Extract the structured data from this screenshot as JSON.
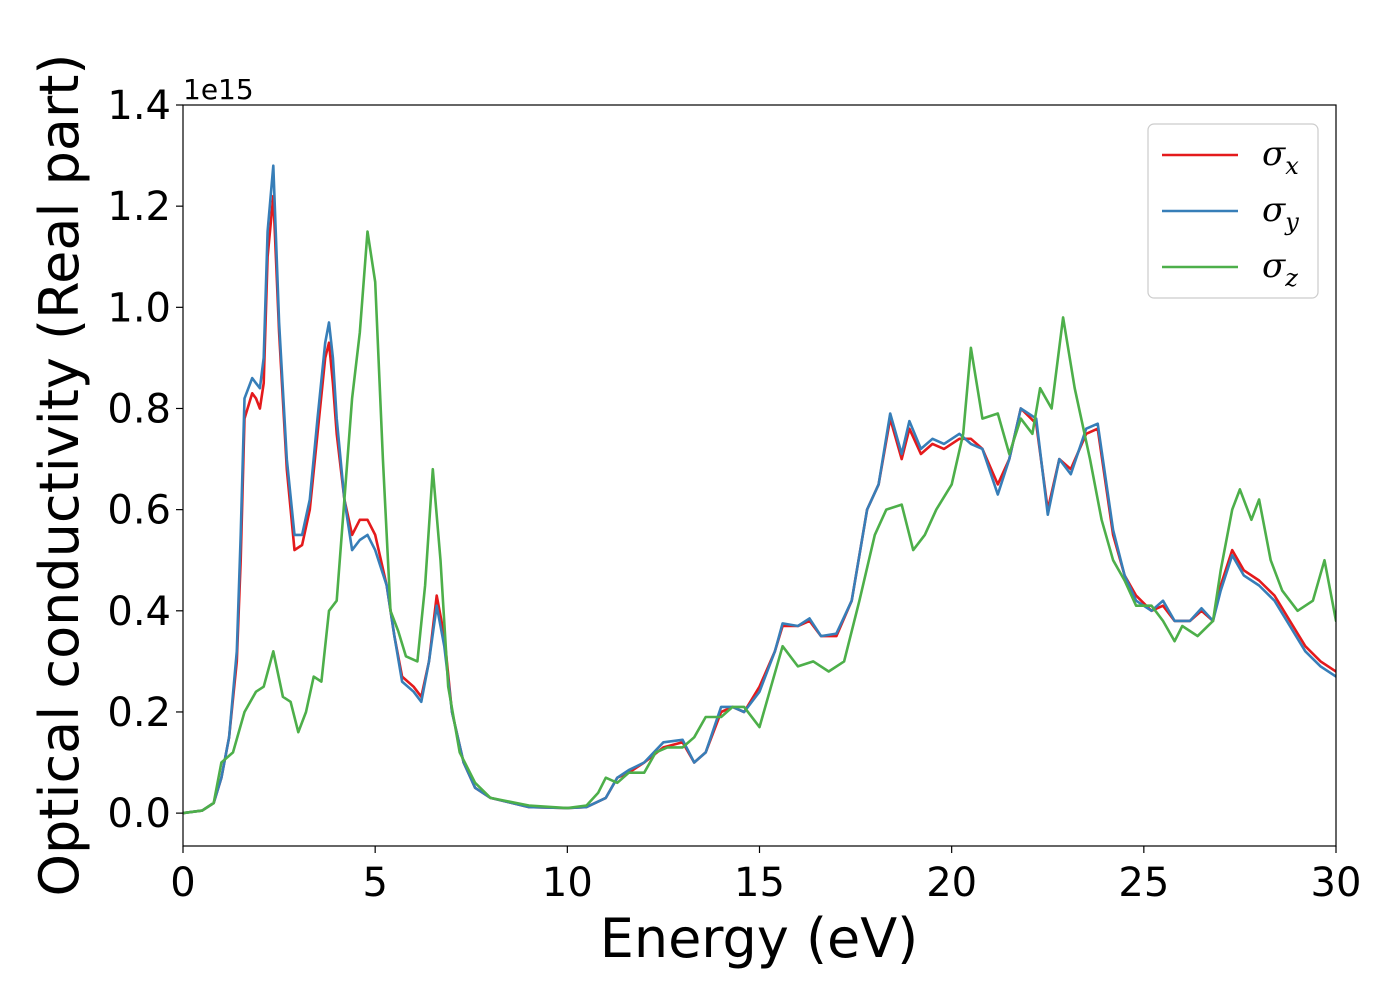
{
  "chart_data": {
    "type": "line",
    "title": "",
    "xlabel": "Energy (eV)",
    "ylabel": "Optical conductivity (Real part)",
    "y_offset_label": "1e15",
    "xlim": [
      0,
      30
    ],
    "ylim": [
      -0.065,
      1.4
    ],
    "xticks": [
      0,
      5,
      10,
      15,
      20,
      25,
      30
    ],
    "xtick_labels": [
      "0",
      "5",
      "10",
      "15",
      "20",
      "25",
      "30"
    ],
    "yticks": [
      0.0,
      0.2,
      0.4,
      0.6,
      0.8,
      1.0,
      1.2,
      1.4
    ],
    "ytick_labels": [
      "0.0",
      "0.2",
      "0.4",
      "0.6",
      "0.8",
      "1.0",
      "1.2",
      "1.4"
    ],
    "grid": false,
    "legend_position": "top-right",
    "series": [
      {
        "name": "σx",
        "label_base": "σ",
        "label_sub": "x",
        "color": "#e41a1c",
        "points": [
          [
            0,
            0
          ],
          [
            0.5,
            0.005
          ],
          [
            0.8,
            0.02
          ],
          [
            1.0,
            0.07
          ],
          [
            1.2,
            0.15
          ],
          [
            1.4,
            0.3
          ],
          [
            1.5,
            0.5
          ],
          [
            1.6,
            0.78
          ],
          [
            1.8,
            0.83
          ],
          [
            1.9,
            0.82
          ],
          [
            2.0,
            0.8
          ],
          [
            2.1,
            0.85
          ],
          [
            2.2,
            1.1
          ],
          [
            2.35,
            1.22
          ],
          [
            2.5,
            0.95
          ],
          [
            2.7,
            0.68
          ],
          [
            2.9,
            0.52
          ],
          [
            3.1,
            0.53
          ],
          [
            3.3,
            0.6
          ],
          [
            3.5,
            0.75
          ],
          [
            3.7,
            0.9
          ],
          [
            3.8,
            0.93
          ],
          [
            3.9,
            0.85
          ],
          [
            4.0,
            0.75
          ],
          [
            4.2,
            0.62
          ],
          [
            4.4,
            0.55
          ],
          [
            4.6,
            0.58
          ],
          [
            4.8,
            0.58
          ],
          [
            5.0,
            0.55
          ],
          [
            5.3,
            0.45
          ],
          [
            5.5,
            0.35
          ],
          [
            5.7,
            0.27
          ],
          [
            6.0,
            0.25
          ],
          [
            6.2,
            0.23
          ],
          [
            6.4,
            0.3
          ],
          [
            6.6,
            0.43
          ],
          [
            6.8,
            0.35
          ],
          [
            7.0,
            0.2
          ],
          [
            7.3,
            0.1
          ],
          [
            7.6,
            0.05
          ],
          [
            8.0,
            0.03
          ],
          [
            9.0,
            0.012
          ],
          [
            10.0,
            0.01
          ],
          [
            10.5,
            0.012
          ],
          [
            11.0,
            0.03
          ],
          [
            11.3,
            0.07
          ],
          [
            11.6,
            0.08
          ],
          [
            12.0,
            0.1
          ],
          [
            12.5,
            0.13
          ],
          [
            13.0,
            0.14
          ],
          [
            13.3,
            0.1
          ],
          [
            13.6,
            0.12
          ],
          [
            14.0,
            0.2
          ],
          [
            14.3,
            0.21
          ],
          [
            14.6,
            0.2
          ],
          [
            15.0,
            0.25
          ],
          [
            15.4,
            0.32
          ],
          [
            15.6,
            0.37
          ],
          [
            16.0,
            0.37
          ],
          [
            16.3,
            0.38
          ],
          [
            16.6,
            0.35
          ],
          [
            17.0,
            0.35
          ],
          [
            17.4,
            0.42
          ],
          [
            17.8,
            0.6
          ],
          [
            18.1,
            0.65
          ],
          [
            18.4,
            0.78
          ],
          [
            18.7,
            0.7
          ],
          [
            18.9,
            0.76
          ],
          [
            19.2,
            0.71
          ],
          [
            19.5,
            0.73
          ],
          [
            19.8,
            0.72
          ],
          [
            20.2,
            0.74
          ],
          [
            20.5,
            0.74
          ],
          [
            20.8,
            0.72
          ],
          [
            21.2,
            0.65
          ],
          [
            21.5,
            0.7
          ],
          [
            21.8,
            0.8
          ],
          [
            22.2,
            0.77
          ],
          [
            22.5,
            0.6
          ],
          [
            22.8,
            0.7
          ],
          [
            23.1,
            0.68
          ],
          [
            23.5,
            0.75
          ],
          [
            23.8,
            0.76
          ],
          [
            24.2,
            0.55
          ],
          [
            24.5,
            0.47
          ],
          [
            24.8,
            0.43
          ],
          [
            25.2,
            0.4
          ],
          [
            25.5,
            0.41
          ],
          [
            25.8,
            0.38
          ],
          [
            26.2,
            0.38
          ],
          [
            26.5,
            0.4
          ],
          [
            26.8,
            0.38
          ],
          [
            27.0,
            0.45
          ],
          [
            27.3,
            0.52
          ],
          [
            27.6,
            0.48
          ],
          [
            28.0,
            0.46
          ],
          [
            28.4,
            0.43
          ],
          [
            28.8,
            0.38
          ],
          [
            29.2,
            0.33
          ],
          [
            29.6,
            0.3
          ],
          [
            30.0,
            0.28
          ]
        ]
      },
      {
        "name": "σy",
        "label_base": "σ",
        "label_sub": "y",
        "color": "#377eb8",
        "points": [
          [
            0,
            0
          ],
          [
            0.5,
            0.005
          ],
          [
            0.8,
            0.02
          ],
          [
            1.0,
            0.07
          ],
          [
            1.2,
            0.15
          ],
          [
            1.4,
            0.32
          ],
          [
            1.5,
            0.55
          ],
          [
            1.6,
            0.82
          ],
          [
            1.8,
            0.86
          ],
          [
            1.9,
            0.85
          ],
          [
            2.0,
            0.84
          ],
          [
            2.1,
            0.9
          ],
          [
            2.2,
            1.15
          ],
          [
            2.35,
            1.28
          ],
          [
            2.5,
            0.97
          ],
          [
            2.7,
            0.7
          ],
          [
            2.9,
            0.55
          ],
          [
            3.1,
            0.55
          ],
          [
            3.3,
            0.62
          ],
          [
            3.5,
            0.78
          ],
          [
            3.7,
            0.93
          ],
          [
            3.8,
            0.97
          ],
          [
            3.9,
            0.9
          ],
          [
            4.0,
            0.78
          ],
          [
            4.2,
            0.62
          ],
          [
            4.4,
            0.52
          ],
          [
            4.6,
            0.54
          ],
          [
            4.8,
            0.55
          ],
          [
            5.0,
            0.52
          ],
          [
            5.3,
            0.45
          ],
          [
            5.5,
            0.35
          ],
          [
            5.7,
            0.26
          ],
          [
            6.0,
            0.24
          ],
          [
            6.2,
            0.22
          ],
          [
            6.4,
            0.3
          ],
          [
            6.6,
            0.41
          ],
          [
            6.8,
            0.33
          ],
          [
            7.0,
            0.2
          ],
          [
            7.3,
            0.1
          ],
          [
            7.6,
            0.05
          ],
          [
            8.0,
            0.03
          ],
          [
            9.0,
            0.012
          ],
          [
            10.0,
            0.01
          ],
          [
            10.5,
            0.012
          ],
          [
            11.0,
            0.03
          ],
          [
            11.3,
            0.07
          ],
          [
            11.6,
            0.085
          ],
          [
            12.0,
            0.1
          ],
          [
            12.5,
            0.14
          ],
          [
            13.0,
            0.145
          ],
          [
            13.3,
            0.1
          ],
          [
            13.6,
            0.12
          ],
          [
            14.0,
            0.21
          ],
          [
            14.3,
            0.21
          ],
          [
            14.6,
            0.2
          ],
          [
            15.0,
            0.24
          ],
          [
            15.4,
            0.32
          ],
          [
            15.6,
            0.375
          ],
          [
            16.0,
            0.37
          ],
          [
            16.3,
            0.385
          ],
          [
            16.6,
            0.35
          ],
          [
            17.0,
            0.355
          ],
          [
            17.4,
            0.42
          ],
          [
            17.8,
            0.6
          ],
          [
            18.1,
            0.65
          ],
          [
            18.4,
            0.79
          ],
          [
            18.7,
            0.71
          ],
          [
            18.9,
            0.775
          ],
          [
            19.2,
            0.72
          ],
          [
            19.5,
            0.74
          ],
          [
            19.8,
            0.73
          ],
          [
            20.2,
            0.75
          ],
          [
            20.5,
            0.73
          ],
          [
            20.8,
            0.72
          ],
          [
            21.2,
            0.63
          ],
          [
            21.5,
            0.7
          ],
          [
            21.8,
            0.8
          ],
          [
            22.2,
            0.78
          ],
          [
            22.5,
            0.59
          ],
          [
            22.8,
            0.7
          ],
          [
            23.1,
            0.67
          ],
          [
            23.5,
            0.76
          ],
          [
            23.8,
            0.77
          ],
          [
            24.2,
            0.56
          ],
          [
            24.5,
            0.47
          ],
          [
            24.8,
            0.42
          ],
          [
            25.2,
            0.4
          ],
          [
            25.5,
            0.42
          ],
          [
            25.8,
            0.38
          ],
          [
            26.2,
            0.38
          ],
          [
            26.5,
            0.405
          ],
          [
            26.8,
            0.38
          ],
          [
            27.0,
            0.44
          ],
          [
            27.3,
            0.51
          ],
          [
            27.6,
            0.47
          ],
          [
            28.0,
            0.45
          ],
          [
            28.4,
            0.42
          ],
          [
            28.8,
            0.37
          ],
          [
            29.2,
            0.32
          ],
          [
            29.6,
            0.29
          ],
          [
            30.0,
            0.27
          ]
        ]
      },
      {
        "name": "σz",
        "label_base": "σ",
        "label_sub": "z",
        "color": "#4daf4a",
        "points": [
          [
            0,
            0
          ],
          [
            0.5,
            0.005
          ],
          [
            0.8,
            0.02
          ],
          [
            1.0,
            0.1
          ],
          [
            1.3,
            0.12
          ],
          [
            1.6,
            0.2
          ],
          [
            1.9,
            0.24
          ],
          [
            2.1,
            0.25
          ],
          [
            2.35,
            0.32
          ],
          [
            2.6,
            0.23
          ],
          [
            2.8,
            0.22
          ],
          [
            3.0,
            0.16
          ],
          [
            3.2,
            0.2
          ],
          [
            3.4,
            0.27
          ],
          [
            3.6,
            0.26
          ],
          [
            3.8,
            0.4
          ],
          [
            4.0,
            0.42
          ],
          [
            4.2,
            0.62
          ],
          [
            4.4,
            0.82
          ],
          [
            4.6,
            0.95
          ],
          [
            4.8,
            1.15
          ],
          [
            5.0,
            1.05
          ],
          [
            5.2,
            0.7
          ],
          [
            5.4,
            0.4
          ],
          [
            5.6,
            0.36
          ],
          [
            5.8,
            0.31
          ],
          [
            6.1,
            0.3
          ],
          [
            6.3,
            0.45
          ],
          [
            6.5,
            0.68
          ],
          [
            6.7,
            0.5
          ],
          [
            6.9,
            0.25
          ],
          [
            7.2,
            0.12
          ],
          [
            7.6,
            0.06
          ],
          [
            8.0,
            0.03
          ],
          [
            9.0,
            0.015
          ],
          [
            10.0,
            0.01
          ],
          [
            10.5,
            0.015
          ],
          [
            10.8,
            0.04
          ],
          [
            11.0,
            0.07
          ],
          [
            11.3,
            0.06
          ],
          [
            11.6,
            0.08
          ],
          [
            12.0,
            0.08
          ],
          [
            12.3,
            0.12
          ],
          [
            12.6,
            0.13
          ],
          [
            13.0,
            0.13
          ],
          [
            13.3,
            0.15
          ],
          [
            13.6,
            0.19
          ],
          [
            14.0,
            0.19
          ],
          [
            14.3,
            0.21
          ],
          [
            14.6,
            0.21
          ],
          [
            15.0,
            0.17
          ],
          [
            15.3,
            0.25
          ],
          [
            15.6,
            0.33
          ],
          [
            16.0,
            0.29
          ],
          [
            16.4,
            0.3
          ],
          [
            16.8,
            0.28
          ],
          [
            17.2,
            0.3
          ],
          [
            17.6,
            0.42
          ],
          [
            18.0,
            0.55
          ],
          [
            18.3,
            0.6
          ],
          [
            18.7,
            0.61
          ],
          [
            19.0,
            0.52
          ],
          [
            19.3,
            0.55
          ],
          [
            19.6,
            0.6
          ],
          [
            20.0,
            0.65
          ],
          [
            20.3,
            0.75
          ],
          [
            20.5,
            0.92
          ],
          [
            20.8,
            0.78
          ],
          [
            21.2,
            0.79
          ],
          [
            21.5,
            0.71
          ],
          [
            21.8,
            0.78
          ],
          [
            22.1,
            0.75
          ],
          [
            22.3,
            0.84
          ],
          [
            22.6,
            0.8
          ],
          [
            22.9,
            0.98
          ],
          [
            23.2,
            0.84
          ],
          [
            23.6,
            0.7
          ],
          [
            23.9,
            0.58
          ],
          [
            24.2,
            0.5
          ],
          [
            24.5,
            0.46
          ],
          [
            24.8,
            0.41
          ],
          [
            25.2,
            0.41
          ],
          [
            25.5,
            0.38
          ],
          [
            25.8,
            0.34
          ],
          [
            26.0,
            0.37
          ],
          [
            26.4,
            0.35
          ],
          [
            26.8,
            0.38
          ],
          [
            27.0,
            0.48
          ],
          [
            27.3,
            0.6
          ],
          [
            27.5,
            0.64
          ],
          [
            27.8,
            0.58
          ],
          [
            28.0,
            0.62
          ],
          [
            28.3,
            0.5
          ],
          [
            28.6,
            0.44
          ],
          [
            29.0,
            0.4
          ],
          [
            29.4,
            0.42
          ],
          [
            29.7,
            0.5
          ],
          [
            30.0,
            0.38
          ]
        ]
      }
    ]
  }
}
